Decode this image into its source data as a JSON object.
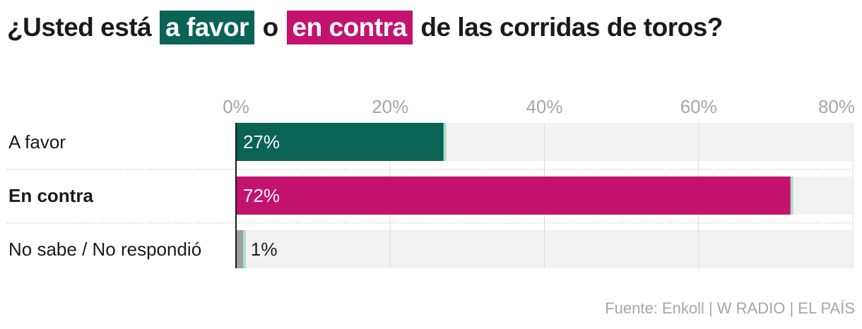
{
  "title": {
    "prefix": "¿Usted está",
    "highlight_1": "a favor",
    "connector": "o",
    "highlight_2": "en contra",
    "suffix": "de las corridas de toros?"
  },
  "source": "Fuente: Enkoll | W RADIO | EL PAÍS",
  "colors": {
    "favor": "#0a6354",
    "contra": "#c4126f",
    "other": "#9e9e9e",
    "track": "#f2f2f2",
    "end_marker": "#a9dfc3"
  },
  "chart_data": {
    "type": "bar",
    "orientation": "horizontal",
    "categories": [
      "A favor",
      "En contra",
      "No sabe / No respondió"
    ],
    "values": [
      27,
      72,
      1
    ],
    "value_labels": [
      "27%",
      "72%",
      "1%"
    ],
    "bold_category": "En contra",
    "xlim": [
      0,
      80
    ],
    "xticks": [
      0,
      20,
      40,
      60,
      80
    ],
    "xtick_labels": [
      "0%",
      "20%",
      "40%",
      "60%",
      "80%"
    ],
    "grid": true,
    "legend": "none"
  }
}
